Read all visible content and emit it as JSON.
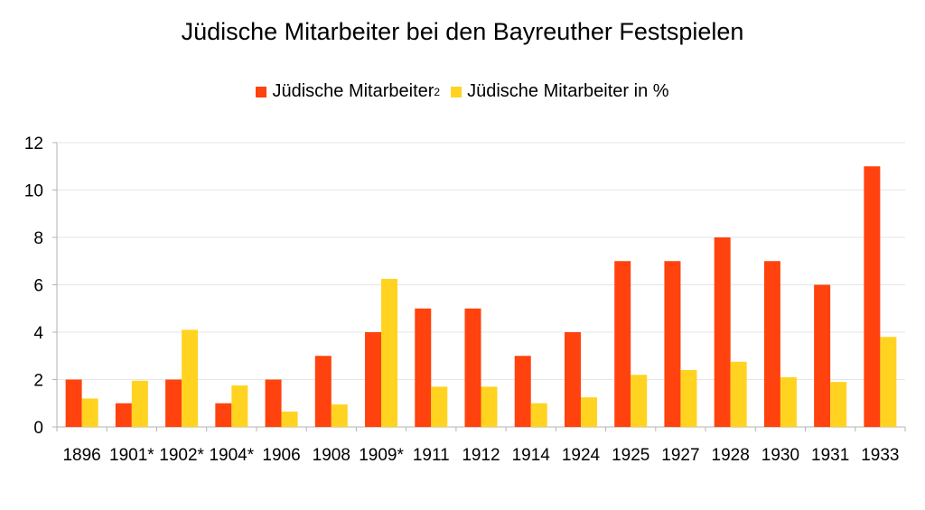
{
  "chart_data": {
    "type": "bar",
    "title": "Jüdische Mitarbeiter bei den Bayreuther Festspielen",
    "categories": [
      "1896",
      "1901*",
      "1902*",
      "1904*",
      "1906",
      "1908",
      "1909*",
      "1911",
      "1912",
      "1914",
      "1924",
      "1925",
      "1927",
      "1928",
      "1930",
      "1931",
      "1933"
    ],
    "series": [
      {
        "name": "Jüdische Mitarbeiter",
        "name_superscript": "2",
        "color": "#ff420e",
        "values": [
          2,
          1,
          2,
          1,
          2,
          3,
          4,
          5,
          5,
          3,
          4,
          7,
          7,
          8,
          7,
          6,
          11
        ]
      },
      {
        "name": "Jüdische Mitarbeiter in %",
        "color": "#ffd320",
        "values": [
          1.2,
          1.95,
          4.1,
          1.75,
          0.65,
          0.95,
          6.25,
          1.7,
          1.7,
          1.0,
          1.25,
          2.2,
          2.4,
          2.75,
          2.1,
          1.9,
          3.8
        ]
      }
    ],
    "xlabel": "",
    "ylabel": "",
    "ylim": [
      0,
      12
    ],
    "yticks": [
      0,
      2,
      4,
      6,
      8,
      10,
      12
    ],
    "grid": true,
    "legend": "top-center"
  }
}
